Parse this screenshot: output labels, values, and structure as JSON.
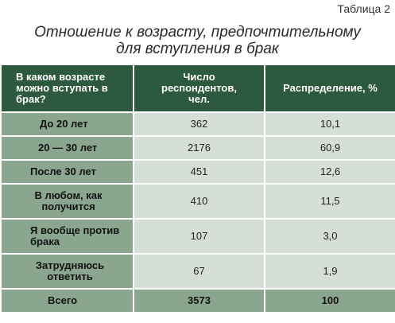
{
  "table_number": "Таблица 2",
  "title": {
    "line1": "Отношение к возрасту, предпочтительному",
    "line2": "для вступления в брак"
  },
  "headers": {
    "col1": "В каком возрасте можно вступать в брак?",
    "col2": "Число респондентов, чел.",
    "col3": "Распределение, %"
  },
  "rows": [
    {
      "label": "До 20 лет",
      "count": "362",
      "percent": "10,1"
    },
    {
      "label": "20 — 30 лет",
      "count": "2176",
      "percent": "60,9"
    },
    {
      "label": "После 30 лет",
      "count": "451",
      "percent": "12,6"
    },
    {
      "label": "В любом, как получится",
      "count": "410",
      "percent": "11,5"
    },
    {
      "label": "Я вообще против брака",
      "count": "107",
      "percent": "3,0"
    },
    {
      "label": "Затрудняюсь ответить",
      "count": "67",
      "percent": "1,9"
    }
  ],
  "total": {
    "label": "Всего",
    "count": "3573",
    "percent": "100"
  },
  "colors": {
    "header_bg": "#2d5a3f",
    "label_bg": "#8aa68f",
    "cell_bg": "#d5dfd5"
  }
}
